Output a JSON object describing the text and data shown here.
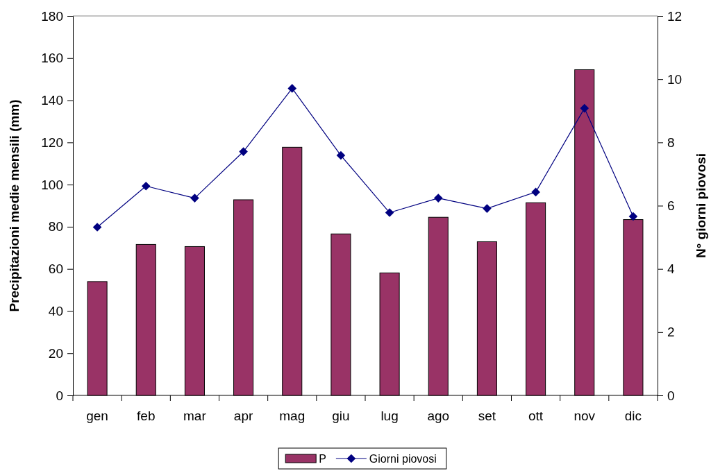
{
  "chart_data": {
    "type": "bar",
    "ylabel": "Precipitazioni medie mensili (mm)",
    "y2label": "N° giorni piovosi",
    "categories": [
      "gen",
      "feb",
      "mar",
      "apr",
      "mag",
      "giu",
      "lug",
      "ago",
      "set",
      "ott",
      "nov",
      "dic"
    ],
    "series": [
      {
        "name": "P",
        "color": "#993366",
        "values": [
          54,
          71.6,
          70.6,
          92.8,
          117.7,
          76.6,
          58.1,
          84.5,
          72.9,
          91.4,
          154.5,
          83.4
        ]
      },
      {
        "name": "Giorni piovosi",
        "type": "line",
        "axis": "y2",
        "color": "#000080",
        "values": [
          5.32,
          6.62,
          6.24,
          7.71,
          9.71,
          7.59,
          5.78,
          6.24,
          5.91,
          6.43,
          9.08,
          5.66
        ]
      }
    ],
    "ylim": [
      0,
      180
    ],
    "yticks": [
      0,
      20,
      40,
      60,
      80,
      100,
      120,
      140,
      160,
      180
    ],
    "y2lim": [
      0,
      12
    ],
    "y2ticks": [
      0,
      2,
      4,
      6,
      8,
      10,
      12
    ],
    "marker": "diamond",
    "grid": false,
    "legend": "bottom"
  }
}
